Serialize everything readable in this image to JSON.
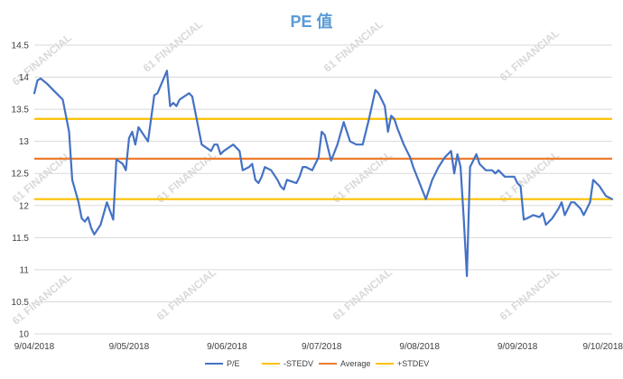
{
  "watermark_text": "61 FINANCIAL",
  "colors": {
    "pe": "#4472c4",
    "minus_stdev": "#ffc000",
    "average": "#ed7d31",
    "plus_stdev": "#ffc000",
    "grid": "#d9d9d9",
    "axis_text": "#404040",
    "title": "#5b9bd5"
  },
  "chart_data": {
    "type": "line",
    "title": "PE 值",
    "xlabel": "",
    "ylabel": "",
    "ylim": [
      10,
      14.5
    ],
    "yticks": [
      "10",
      "10.5",
      "11",
      "11.5",
      "12",
      "12.5",
      "13",
      "13.5",
      "14",
      "14.5"
    ],
    "x_tick_labels": [
      "9/04/2018",
      "9/05/2018",
      "9/06/2018",
      "9/07/2018",
      "9/08/2018",
      "9/09/2018",
      "9/10/2018"
    ],
    "x_tick_dates": [
      "2018-04-09",
      "2018-05-09",
      "2018-06-09",
      "2018-07-09",
      "2018-08-09",
      "2018-09-09",
      "2018-10-09"
    ],
    "grid": "horizontal",
    "legend_position": "bottom",
    "series": [
      {
        "name": "P/E",
        "points": [
          [
            "2018-04-09",
            13.75
          ],
          [
            "2018-04-10",
            13.95
          ],
          [
            "2018-04-11",
            13.98
          ],
          [
            "2018-04-13",
            13.9
          ],
          [
            "2018-04-15",
            13.8
          ],
          [
            "2018-04-18",
            13.65
          ],
          [
            "2018-04-20",
            13.15
          ],
          [
            "2018-04-21",
            12.4
          ],
          [
            "2018-04-23",
            12.05
          ],
          [
            "2018-04-24",
            11.8
          ],
          [
            "2018-04-25",
            11.75
          ],
          [
            "2018-04-26",
            11.82
          ],
          [
            "2018-04-27",
            11.65
          ],
          [
            "2018-04-28",
            11.55
          ],
          [
            "2018-04-30",
            11.7
          ],
          [
            "2018-05-02",
            12.05
          ],
          [
            "2018-05-04",
            11.78
          ],
          [
            "2018-05-05",
            12.72
          ],
          [
            "2018-05-07",
            12.65
          ],
          [
            "2018-05-08",
            12.55
          ],
          [
            "2018-05-09",
            13.05
          ],
          [
            "2018-05-10",
            13.15
          ],
          [
            "2018-05-11",
            12.95
          ],
          [
            "2018-05-12",
            13.22
          ],
          [
            "2018-05-15",
            13.0
          ],
          [
            "2018-05-17",
            13.72
          ],
          [
            "2018-05-18",
            13.75
          ],
          [
            "2018-05-21",
            14.1
          ],
          [
            "2018-05-22",
            13.55
          ],
          [
            "2018-05-23",
            13.6
          ],
          [
            "2018-05-24",
            13.55
          ],
          [
            "2018-05-25",
            13.65
          ],
          [
            "2018-05-28",
            13.75
          ],
          [
            "2018-05-29",
            13.7
          ],
          [
            "2018-06-01",
            12.95
          ],
          [
            "2018-06-04",
            12.85
          ],
          [
            "2018-06-05",
            12.95
          ],
          [
            "2018-06-06",
            12.95
          ],
          [
            "2018-06-07",
            12.8
          ],
          [
            "2018-06-08",
            12.85
          ],
          [
            "2018-06-11",
            12.95
          ],
          [
            "2018-06-13",
            12.85
          ],
          [
            "2018-06-14",
            12.55
          ],
          [
            "2018-06-16",
            12.6
          ],
          [
            "2018-06-17",
            12.65
          ],
          [
            "2018-06-18",
            12.4
          ],
          [
            "2018-06-19",
            12.35
          ],
          [
            "2018-06-20",
            12.45
          ],
          [
            "2018-06-21",
            12.6
          ],
          [
            "2018-06-23",
            12.55
          ],
          [
            "2018-06-25",
            12.4
          ],
          [
            "2018-06-26",
            12.3
          ],
          [
            "2018-06-27",
            12.25
          ],
          [
            "2018-06-28",
            12.4
          ],
          [
            "2018-07-01",
            12.35
          ],
          [
            "2018-07-02",
            12.45
          ],
          [
            "2018-07-03",
            12.6
          ],
          [
            "2018-07-04",
            12.6
          ],
          [
            "2018-07-06",
            12.55
          ],
          [
            "2018-07-08",
            12.75
          ],
          [
            "2018-07-09",
            13.15
          ],
          [
            "2018-07-10",
            13.1
          ],
          [
            "2018-07-12",
            12.7
          ],
          [
            "2018-07-14",
            12.95
          ],
          [
            "2018-07-16",
            13.3
          ],
          [
            "2018-07-18",
            13.0
          ],
          [
            "2018-07-20",
            12.95
          ],
          [
            "2018-07-22",
            12.95
          ],
          [
            "2018-07-24",
            13.35
          ],
          [
            "2018-07-26",
            13.8
          ],
          [
            "2018-07-27",
            13.75
          ],
          [
            "2018-07-28",
            13.65
          ],
          [
            "2018-07-29",
            13.55
          ],
          [
            "2018-07-30",
            13.15
          ],
          [
            "2018-07-31",
            13.4
          ],
          [
            "2018-08-01",
            13.35
          ],
          [
            "2018-08-02",
            13.2
          ],
          [
            "2018-08-04",
            12.95
          ],
          [
            "2018-08-05",
            12.85
          ],
          [
            "2018-08-06",
            12.75
          ],
          [
            "2018-08-07",
            12.6
          ],
          [
            "2018-08-09",
            12.35
          ],
          [
            "2018-08-11",
            12.1
          ],
          [
            "2018-08-13",
            12.4
          ],
          [
            "2018-08-15",
            12.6
          ],
          [
            "2018-08-17",
            12.75
          ],
          [
            "2018-08-19",
            12.85
          ],
          [
            "2018-08-20",
            12.5
          ],
          [
            "2018-08-21",
            12.8
          ],
          [
            "2018-08-22",
            12.6
          ],
          [
            "2018-08-23",
            11.8
          ],
          [
            "2018-08-24",
            10.9
          ],
          [
            "2018-08-25",
            12.6
          ],
          [
            "2018-08-27",
            12.8
          ],
          [
            "2018-08-28",
            12.65
          ],
          [
            "2018-08-30",
            12.55
          ],
          [
            "2018-09-01",
            12.55
          ],
          [
            "2018-09-02",
            12.5
          ],
          [
            "2018-09-03",
            12.55
          ],
          [
            "2018-09-05",
            12.45
          ],
          [
            "2018-09-08",
            12.45
          ],
          [
            "2018-09-09",
            12.35
          ],
          [
            "2018-09-10",
            12.3
          ],
          [
            "2018-09-11",
            11.78
          ],
          [
            "2018-09-12",
            11.8
          ],
          [
            "2018-09-14",
            11.85
          ],
          [
            "2018-09-16",
            11.82
          ],
          [
            "2018-09-17",
            11.88
          ],
          [
            "2018-09-18",
            11.7
          ],
          [
            "2018-09-20",
            11.8
          ],
          [
            "2018-09-22",
            11.95
          ],
          [
            "2018-09-23",
            12.05
          ],
          [
            "2018-09-24",
            11.85
          ],
          [
            "2018-09-26",
            12.05
          ],
          [
            "2018-09-27",
            12.05
          ],
          [
            "2018-09-29",
            11.95
          ],
          [
            "2018-09-30",
            11.85
          ],
          [
            "2018-10-02",
            12.05
          ],
          [
            "2018-10-03",
            12.4
          ],
          [
            "2018-10-05",
            12.3
          ],
          [
            "2018-10-07",
            12.15
          ],
          [
            "2018-10-09",
            12.1
          ]
        ]
      },
      {
        "name": "-STEDV",
        "constant": 12.1
      },
      {
        "name": "Average",
        "constant": 12.73
      },
      {
        "name": "+STDEV",
        "constant": 13.35
      }
    ]
  }
}
